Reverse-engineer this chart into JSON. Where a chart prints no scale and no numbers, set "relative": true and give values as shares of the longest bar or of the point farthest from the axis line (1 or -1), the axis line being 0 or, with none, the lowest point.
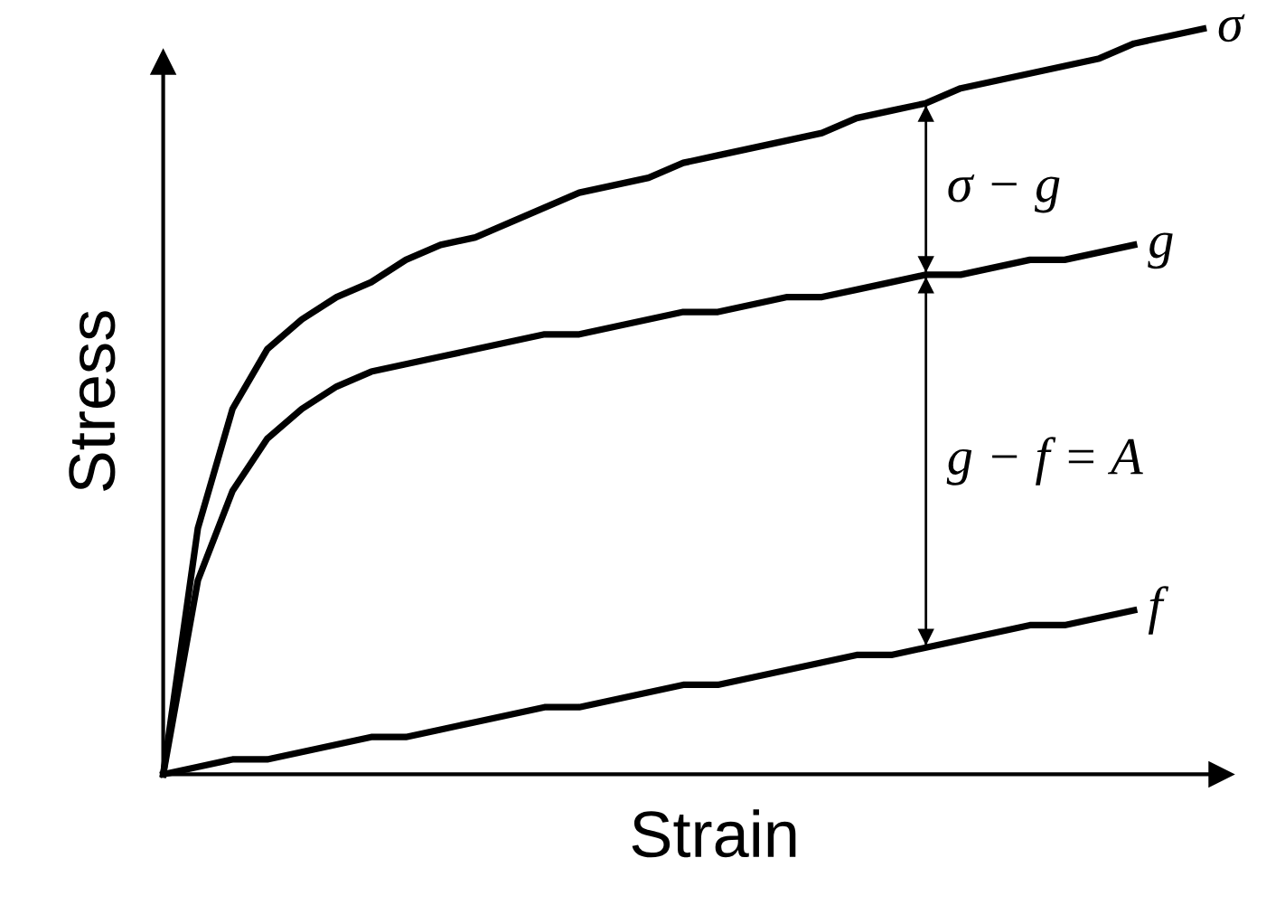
{
  "chart_data": {
    "type": "line",
    "relative": true,
    "xlabel": "Strain",
    "ylabel": "Stress",
    "legend": false,
    "categories": [
      null,
      null,
      null,
      null,
      null,
      null,
      null,
      null,
      null,
      null,
      null,
      null,
      null,
      null,
      null,
      null,
      null,
      null,
      null,
      null,
      null,
      null,
      null,
      null,
      null,
      null,
      null,
      null,
      null,
      null,
      null
    ],
    "series": [
      {
        "name": "σ",
        "color": "#000000",
        "values": [
          0,
          0.33,
          0.49,
          0.57,
          0.61,
          0.64,
          0.66,
          0.69,
          0.71,
          0.72,
          0.74,
          0.76,
          0.78,
          0.79,
          0.8,
          0.82,
          0.83,
          0.84,
          0.85,
          0.86,
          0.88,
          0.89,
          0.9,
          0.92,
          0.93,
          0.94,
          0.95,
          0.96,
          0.98,
          0.99,
          1
        ]
      },
      {
        "name": "g",
        "color": "#000000",
        "values": [
          0,
          0.26,
          0.38,
          0.45,
          0.49,
          0.52,
          0.54,
          0.55,
          0.56,
          0.57,
          0.58,
          0.59,
          0.59,
          0.6,
          0.61,
          0.62,
          0.62,
          0.63,
          0.64,
          0.64,
          0.65,
          0.66,
          0.67,
          0.67,
          0.68,
          0.69,
          0.69,
          0.7,
          0.71,
          null,
          null
        ]
      },
      {
        "name": "f",
        "color": "#000000",
        "values": [
          0,
          0.01,
          0.02,
          0.02,
          0.03,
          0.04,
          0.05,
          0.05,
          0.06,
          0.07,
          0.08,
          0.09,
          0.09,
          0.1,
          0.11,
          0.12,
          0.12,
          0.13,
          0.14,
          0.15,
          0.16,
          0.16,
          0.17,
          0.18,
          0.19,
          0.2,
          0.2,
          0.21,
          0.22,
          null,
          null
        ]
      }
    ],
    "annotations": [
      "σ − g",
      "g − f = A"
    ],
    "marker": "none",
    "line_style": "solid"
  }
}
